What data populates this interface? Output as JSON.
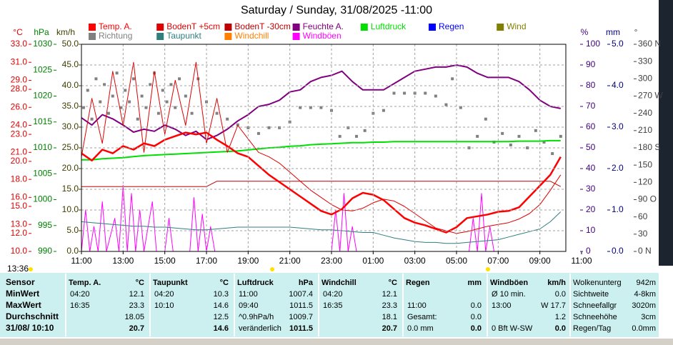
{
  "chart_data": {
    "type": "line",
    "title": "Saturday / Sunday, 31/08/2025  -11:00",
    "x": [
      0,
      0.5,
      1,
      1.5,
      2,
      2.5,
      3,
      3.5,
      4,
      4.5,
      5,
      5.5,
      6,
      6.5,
      7,
      7.5,
      8,
      8.5,
      9,
      9.5,
      10,
      10.5,
      11,
      11.5,
      12,
      12.5,
      13,
      13.5,
      14,
      14.5,
      15,
      15.5,
      16,
      16.5,
      17,
      17.5,
      18,
      18.5,
      19,
      19.5,
      20,
      20.5,
      21,
      21.5,
      22,
      22.5,
      23
    ],
    "xlim": [
      0,
      24
    ],
    "xticks": [
      {
        "value": 0,
        "label": "11:00"
      },
      {
        "value": 2,
        "label": "13:00"
      },
      {
        "value": 4,
        "label": "15:00"
      },
      {
        "value": 6,
        "label": "17:00"
      },
      {
        "value": 8,
        "label": "19:00"
      },
      {
        "value": 10,
        "label": "21:00"
      },
      {
        "value": 12,
        "label": "23:00"
      },
      {
        "value": 14,
        "label": "01:00"
      },
      {
        "value": 16,
        "label": "03:00"
      },
      {
        "value": 18,
        "label": "05:00"
      },
      {
        "value": 20,
        "label": "07:00"
      },
      {
        "value": 22,
        "label": "09:00"
      },
      {
        "value": 24,
        "label": "11:00"
      }
    ],
    "grid": "kmh",
    "axes": {
      "C": {
        "label": "°C",
        "color": "#e00000",
        "lim": [
          10,
          33
        ],
        "ticks": [
          {
            "value": 33,
            "label": "33.0"
          },
          {
            "value": 31,
            "label": "31.0"
          },
          {
            "value": 29,
            "label": "29.0"
          },
          {
            "value": 28,
            "label": "28.0"
          },
          {
            "value": 26,
            "label": "26.0"
          },
          {
            "value": 24,
            "label": "24.0"
          },
          {
            "value": 23,
            "label": "23.0"
          },
          {
            "value": 21,
            "label": "21.0"
          },
          {
            "value": 20,
            "label": "20.0"
          },
          {
            "value": 18,
            "label": "18.0"
          },
          {
            "value": 16,
            "label": "16.0"
          },
          {
            "value": 15,
            "label": "15.0"
          },
          {
            "value": 13,
            "label": "13.0"
          },
          {
            "value": 12,
            "label": "12.0"
          },
          {
            "value": 10,
            "label": "10.0"
          }
        ]
      },
      "hPa": {
        "label": "hPa",
        "color": "#008000",
        "lim": [
          990,
          1030
        ],
        "ticks": [
          1030,
          1025,
          1020,
          1015,
          1010,
          1005,
          1000,
          995,
          990
        ]
      },
      "kmh": {
        "label": "km/h",
        "color": "#404000",
        "lim": [
          0,
          50
        ],
        "ticks": [
          {
            "value": 50,
            "label": "50.0"
          },
          {
            "value": 45,
            "label": "45.0"
          },
          {
            "value": 40,
            "label": "40.0"
          },
          {
            "value": 35,
            "label": "35.0"
          },
          {
            "value": 30,
            "label": "30.0"
          },
          {
            "value": 25,
            "label": "25.0"
          },
          {
            "value": 20,
            "label": "20.0"
          },
          {
            "value": 15,
            "label": "15.0"
          },
          {
            "value": 10,
            "label": "10.0"
          },
          {
            "value": 5,
            "label": "5.0"
          },
          {
            "value": 0,
            "label": "0.0"
          }
        ]
      },
      "pct": {
        "label": "%",
        "color": "#400080",
        "lim": [
          0,
          100
        ],
        "ticks": [
          100,
          90,
          80,
          70,
          60,
          50,
          40,
          30,
          20,
          10,
          0
        ]
      },
      "mm": {
        "label": "mm",
        "color": "#000080",
        "lim": [
          0,
          5
        ],
        "ticks": [
          {
            "value": 5,
            "label": "5.0"
          },
          {
            "value": 4,
            "label": "4.0"
          },
          {
            "value": 3,
            "label": "3.0"
          },
          {
            "value": 2,
            "label": "2.0"
          },
          {
            "value": 1,
            "label": "1.0"
          },
          {
            "value": 0,
            "label": "0.0"
          }
        ]
      },
      "deg": {
        "label": "°",
        "color": "#404040",
        "lim": [
          0,
          360
        ],
        "ticks": [
          {
            "value": 360,
            "label": "360 N"
          },
          330,
          300,
          {
            "value": 270,
            "label": "270 W"
          },
          240,
          210,
          {
            "value": 180,
            "label": "180 S"
          },
          150,
          120,
          {
            "value": 90,
            "label": "90 O"
          },
          60,
          30,
          {
            "value": 0,
            "label": "0 N"
          }
        ]
      }
    },
    "series": [
      {
        "name": "Temp. A.",
        "color": "#ff0000",
        "axis": "C",
        "values": [
          20.9,
          20.1,
          21.3,
          20.9,
          21.7,
          21.3,
          22.0,
          21.7,
          22.4,
          22.8,
          23.2,
          23.0,
          23.2,
          22.4,
          21.7,
          20.9,
          20.5,
          19.5,
          18.5,
          17.7,
          16.9,
          16.1,
          15.3,
          14.5,
          14.1,
          14.7,
          15.9,
          16.5,
          16.3,
          15.7,
          14.7,
          13.7,
          13.2,
          12.9,
          12.5,
          12.1,
          12.7,
          13.7,
          13.9,
          14.1,
          14.4,
          14.5,
          14.9,
          16.1,
          17.3,
          18.5,
          20.5
        ]
      },
      {
        "name": "BodenT +5cm",
        "color": "#e00000",
        "axis": "C",
        "values": [
          20.5,
          27,
          22,
          30,
          24,
          31,
          21,
          30,
          23,
          29,
          24,
          31,
          22,
          27,
          21,
          24,
          22.5,
          21,
          20.5,
          19.8,
          18.8,
          17.8,
          16.8,
          16.0,
          15.2,
          14.6,
          14.5,
          14.8,
          15.4,
          15.8,
          15.6,
          15.0,
          14.2,
          13.4,
          12.6,
          12.3,
          12.0,
          12.2,
          12.5,
          12.8,
          13.0,
          13.2,
          13.6,
          14.2,
          15.2,
          16.8,
          18.5
        ]
      },
      {
        "name": "BodenT -30cm",
        "color": "#c00000",
        "axis": "C",
        "values": [
          17.2,
          17.2,
          17.2,
          17.2,
          17.2,
          17.2,
          17.2,
          17.2,
          17.2,
          17.2,
          17.2,
          17.2,
          17.2,
          17.8,
          17.8,
          17.8,
          17.8,
          17.8,
          17.8,
          17.8,
          17.8,
          17.8,
          17.8,
          17.8,
          17.8,
          17.8,
          17.8,
          17.8,
          17.8,
          17.8,
          17.8,
          17.8,
          17.8,
          17.8,
          17.8,
          17.8,
          17.8,
          17.8,
          17.8,
          17.8,
          17.8,
          17.8,
          17.8,
          17.8,
          17.8,
          17.8,
          17.2
        ]
      },
      {
        "name": "Feuchte A.",
        "color": "#800080",
        "axis": "pct",
        "values": [
          64.5,
          61,
          66,
          64,
          61,
          57.6,
          59,
          58,
          61,
          59,
          56,
          58,
          54,
          56,
          59,
          63,
          66,
          70,
          71,
          73,
          77,
          78,
          82,
          84,
          85,
          87,
          82,
          78,
          78,
          78,
          81,
          84,
          87,
          88,
          89,
          89,
          90,
          89,
          86,
          84,
          84,
          84,
          82,
          78,
          73,
          70,
          69
        ]
      },
      {
        "name": "Luftdruck",
        "color": "#00e000",
        "axis": "hPa",
        "values": [
          1007.7,
          1007.7,
          1007.9,
          1008.0,
          1008.1,
          1008.3,
          1008.5,
          1008.6,
          1008.7,
          1008.8,
          1008.9,
          1009.0,
          1009.1,
          1009.2,
          1009.3,
          1009.4,
          1009.6,
          1009.8,
          1010.0,
          1010.1,
          1010.3,
          1010.4,
          1010.6,
          1010.7,
          1010.8,
          1010.9,
          1011.0,
          1011.0,
          1011.1,
          1011.1,
          1011.2,
          1011.2,
          1011.2,
          1011.2,
          1011.2,
          1011.2,
          1011.2,
          1011.2,
          1011.2,
          1011.2,
          1011.2,
          1011.2,
          1011.3,
          1011.3,
          1011.3,
          1011.4,
          1011.4
        ]
      },
      {
        "name": "Regen",
        "color": "#0000ff",
        "axis": "mm"
      },
      {
        "name": "Wind",
        "color": "#808000",
        "axis": "kmh"
      },
      {
        "name": "Richtung",
        "color": "#808080",
        "axis": "deg",
        "type": "scatter",
        "x": [
          0.1,
          0.3,
          0.5,
          0.7,
          0.9,
          1.1,
          1.3,
          1.5,
          1.7,
          1.9,
          2.1,
          2.3,
          2.5,
          2.7,
          2.9,
          3.1,
          3.3,
          3.5,
          3.7,
          3.9,
          4.1,
          4.3,
          4.5,
          4.7,
          5.0,
          5.3,
          5.6,
          6.0,
          6.5,
          7.0,
          7.5,
          8.0,
          8.5,
          9.0,
          9.5,
          10.0,
          10.5,
          11.0,
          11.5,
          12.0,
          12.4,
          12.8,
          13.2,
          13.6,
          14.0,
          14.5,
          15.0,
          15.5,
          16.0,
          16.5,
          17.0,
          17.5,
          17.8,
          18.2,
          18.6,
          19.0,
          19.4,
          19.8,
          20.2,
          20.6,
          21.0,
          21.4,
          21.8,
          22.2,
          22.6,
          23.0
        ],
        "values": [
          250,
          280,
          230,
          300,
          260,
          290,
          240,
          270,
          310,
          250,
          280,
          260,
          300,
          230,
          270,
          250,
          290,
          310,
          240,
          280,
          260,
          290,
          250,
          300,
          270,
          240,
          300,
          260,
          240,
          230,
          220,
          215,
          205,
          215,
          215,
          225,
          250,
          250,
          250,
          245,
          200,
          215,
          200,
          210,
          240,
          245,
          275,
          275,
          275,
          275,
          270,
          255,
          300,
          250,
          180,
          200,
          230,
          190,
          205,
          185,
          200,
          180,
          210,
          190,
          170,
          200
        ]
      },
      {
        "name": "Taupunkt",
        "color": "#2f7f7f",
        "axis": "C",
        "values": [
          13.3,
          13.2,
          13.1,
          13.0,
          12.9,
          12.8,
          12.8,
          12.7,
          12.7,
          12.6,
          12.5,
          12.4,
          12.4,
          12.5,
          12.6,
          12.7,
          12.7,
          12.7,
          12.7,
          12.7,
          12.7,
          12.6,
          12.5,
          12.4,
          12.4,
          12.3,
          12.2,
          12.1,
          12.1,
          11.8,
          11.5,
          11.3,
          11.1,
          11.0,
          11.0,
          10.9,
          10.9,
          11.0,
          11.1,
          11.2,
          11.3,
          11.6,
          11.9,
          12.2,
          12.5,
          13.3,
          14.4
        ]
      },
      {
        "name": "Windchill",
        "color": "#ff8000",
        "axis": "C"
      },
      {
        "name": "Windböen",
        "color": "#ff00ff",
        "axis": "kmh",
        "x": [
          0,
          0.2,
          0.4,
          0.6,
          0.8,
          1.0,
          1.2,
          1.6,
          1.8,
          2.0,
          2.2,
          2.4,
          2.6,
          2.8,
          3.0,
          3.4,
          3.6,
          4.0,
          4.2,
          4.4,
          5.2,
          5.4,
          5.6,
          5.8,
          6.0,
          6.2,
          6.4,
          12.0,
          12.2,
          12.4,
          12.6,
          12.8,
          13.0,
          13.2,
          18.6,
          18.8,
          19.0,
          19.2,
          19.4,
          19.6,
          19.8,
          23.0
        ],
        "values": [
          0,
          10,
          0,
          6,
          0,
          12,
          0,
          8,
          0,
          16,
          0,
          14,
          0,
          10,
          0,
          12,
          0,
          0,
          8,
          0,
          0,
          13,
          0,
          9,
          0,
          6,
          0,
          0,
          10,
          0,
          14,
          0,
          6,
          0,
          0,
          8,
          0,
          14,
          0,
          6,
          0,
          0
        ]
      }
    ]
  },
  "panel": {
    "time": "13:36",
    "sensor_header": "Sensor",
    "row_labels": [
      "MinWert",
      "MaxWert",
      "Durchschnitt",
      "31/08/ 10:10"
    ],
    "columns": [
      {
        "header": "Temp. A.",
        "unit": "°C",
        "cells": [
          {
            "left": "04:20",
            "right": "12.1"
          },
          {
            "left": "16:35",
            "right": "23.3"
          },
          {
            "right": "18.05"
          },
          {
            "right": "20.7"
          }
        ]
      },
      {
        "header": "Taupunkt",
        "unit": "°C",
        "cells": [
          {
            "left": "04:20",
            "right": "10.3"
          },
          {
            "left": "10:10",
            "right": "14.6"
          },
          {
            "right": "12.5"
          },
          {
            "right": "14.6"
          }
        ]
      },
      {
        "header": "Luftdruck",
        "unit": "hPa",
        "cells": [
          {
            "left": "11:00",
            "right": "1007.4"
          },
          {
            "left": "09:40",
            "right": "1011.5"
          },
          {
            "left": "^0.9hPa/h",
            "right": "1009.7"
          },
          {
            "left": "veränderlich",
            "right": "1011.5"
          }
        ]
      },
      {
        "header": "Windchill",
        "unit": "°C",
        "cells": [
          {
            "left": "04:20",
            "right": "12.1"
          },
          {
            "left": "16:35",
            "right": "23.3"
          },
          {
            "right": "18.1"
          },
          {
            "right": "20.7"
          }
        ]
      },
      {
        "header": "Regen",
        "unit": "mm",
        "cells": [
          {},
          {
            "left": "11:00",
            "right": "0.0"
          },
          {
            "left": "Gesamt:",
            "right": "0.0"
          },
          {
            "left": "0.0 mm",
            "right": "0.0"
          }
        ]
      },
      {
        "header": "Windböen",
        "unit": "km/h",
        "cells": [
          {
            "left": "Ø 10 min.",
            "right": "0.0"
          },
          {
            "left": "13:00",
            "right": "W 17.7"
          },
          {
            "right": "1.2"
          },
          {
            "left": "0 Bft W-SW",
            "right": "0.0"
          }
        ]
      }
    ],
    "extra": [
      [
        "Wolkenunterg",
        "942m"
      ],
      [
        "Sichtweite",
        "4-8km"
      ],
      [
        "Schneefallgr",
        "3020m"
      ],
      [
        "Schneehöhe",
        "3cm"
      ],
      [
        "Regen/Tag",
        "0.0mm"
      ]
    ]
  }
}
